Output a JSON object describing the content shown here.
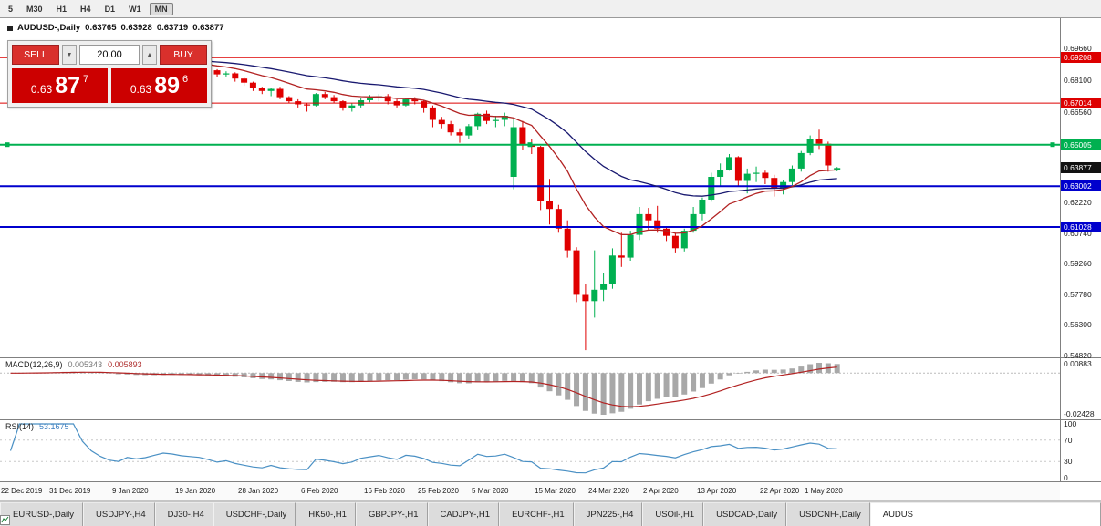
{
  "toolbar": {
    "timeframes": [
      {
        "label": "5",
        "active": false
      },
      {
        "label": "M30",
        "active": false
      },
      {
        "label": "H1",
        "active": false
      },
      {
        "label": "H4",
        "active": false
      },
      {
        "label": "D1",
        "active": false
      },
      {
        "label": "W1",
        "active": false
      },
      {
        "label": "MN",
        "active": true
      }
    ]
  },
  "chart": {
    "symbol_line": {
      "symbol": "AUDUSD-,Daily",
      "open": "0.63765",
      "high": "0.63928",
      "low": "0.63719",
      "close": "0.63877"
    }
  },
  "trade_panel": {
    "sell_label": "SELL",
    "buy_label": "BUY",
    "volume": "20.00",
    "sell_price": {
      "base": "0.63",
      "pips": "87",
      "sup": "7"
    },
    "buy_price": {
      "base": "0.63",
      "pips": "89",
      "sup": "6"
    }
  },
  "indicator_headers": {
    "macd": {
      "name": "MACD(12,26,9)",
      "value1": "0.005343",
      "value2": "0.005893"
    },
    "rsi": {
      "name": "RSI(14)",
      "value": "53.1675"
    }
  },
  "chart_data": {
    "type": "candlestick",
    "title": "AUDUSD-,Daily",
    "price_range": {
      "max": 0.6966,
      "min": 0.5482
    },
    "y_axis_labels": [
      "0.69660",
      "0.68100",
      "0.66560",
      "0.62220",
      "0.60740",
      "0.59260",
      "0.57780",
      "0.56300",
      "0.54820"
    ],
    "x_axis_labels": [
      {
        "bar": 0,
        "text": "22 Dec 2019"
      },
      {
        "bar": 7,
        "text": "31 Dec 2019"
      },
      {
        "bar": 14,
        "text": "9 Jan 2020"
      },
      {
        "bar": 21,
        "text": "19 Jan 2020"
      },
      {
        "bar": 28,
        "text": "28 Jan 2020"
      },
      {
        "bar": 35,
        "text": "6 Feb 2020"
      },
      {
        "bar": 42,
        "text": "16 Feb 2020"
      },
      {
        "bar": 48,
        "text": "25 Feb 2020"
      },
      {
        "bar": 54,
        "text": "5 Mar 2020"
      },
      {
        "bar": 61,
        "text": "15 Mar 2020"
      },
      {
        "bar": 67,
        "text": "24 Mar 2020"
      },
      {
        "bar": 73,
        "text": "2 Apr 2020"
      },
      {
        "bar": 79,
        "text": "13 Apr 2020"
      },
      {
        "bar": 86,
        "text": "22 Apr 2020"
      },
      {
        "bar": 91,
        "text": "1 May 2020"
      }
    ],
    "candles": [
      [
        0.691,
        0.6925,
        0.69,
        0.692
      ],
      [
        0.692,
        0.6935,
        0.691,
        0.6928
      ],
      [
        0.6928,
        0.694,
        0.6918,
        0.6935
      ],
      [
        0.6935,
        0.6948,
        0.6925,
        0.694
      ],
      [
        0.694,
        0.695,
        0.693,
        0.6945
      ],
      [
        0.6945,
        0.6955,
        0.6935,
        0.695
      ],
      [
        0.695,
        0.696,
        0.694,
        0.6955
      ],
      [
        0.6955,
        0.6962,
        0.6945,
        0.6958
      ],
      [
        0.6958,
        0.696,
        0.693,
        0.694
      ],
      [
        0.694,
        0.6945,
        0.6905,
        0.692
      ],
      [
        0.692,
        0.6925,
        0.6885,
        0.69
      ],
      [
        0.69,
        0.6905,
        0.6865,
        0.688
      ],
      [
        0.688,
        0.689,
        0.6855,
        0.687
      ],
      [
        0.687,
        0.6895,
        0.686,
        0.6885
      ],
      [
        0.6885,
        0.69,
        0.6855,
        0.6875
      ],
      [
        0.6875,
        0.6895,
        0.6865,
        0.688
      ],
      [
        0.688,
        0.69,
        0.687,
        0.689
      ],
      [
        0.689,
        0.691,
        0.688,
        0.69
      ],
      [
        0.69,
        0.6905,
        0.688,
        0.6895
      ],
      [
        0.6895,
        0.69,
        0.687,
        0.6885
      ],
      [
        0.6885,
        0.689,
        0.6865,
        0.688
      ],
      [
        0.688,
        0.6885,
        0.686,
        0.6875
      ],
      [
        0.6875,
        0.688,
        0.6845,
        0.686
      ],
      [
        0.686,
        0.6865,
        0.6825,
        0.684
      ],
      [
        0.684,
        0.6855,
        0.683,
        0.6845
      ],
      [
        0.6845,
        0.685,
        0.6805,
        0.682
      ],
      [
        0.682,
        0.6825,
        0.6785,
        0.68
      ],
      [
        0.68,
        0.6805,
        0.676,
        0.6775
      ],
      [
        0.6775,
        0.678,
        0.6745,
        0.676
      ],
      [
        0.676,
        0.6775,
        0.6735,
        0.677
      ],
      [
        0.677,
        0.678,
        0.672,
        0.673
      ],
      [
        0.673,
        0.6735,
        0.67,
        0.671
      ],
      [
        0.671,
        0.672,
        0.668,
        0.6695
      ],
      [
        0.6695,
        0.67,
        0.666,
        0.669
      ],
      [
        0.669,
        0.675,
        0.6685,
        0.6745
      ],
      [
        0.6745,
        0.6755,
        0.672,
        0.673
      ],
      [
        0.673,
        0.674,
        0.67,
        0.671
      ],
      [
        0.671,
        0.6715,
        0.6665,
        0.668
      ],
      [
        0.668,
        0.67,
        0.666,
        0.669
      ],
      [
        0.669,
        0.6725,
        0.668,
        0.6715
      ],
      [
        0.6715,
        0.674,
        0.6705,
        0.6725
      ],
      [
        0.6725,
        0.6745,
        0.671,
        0.6735
      ],
      [
        0.6735,
        0.6745,
        0.6695,
        0.671
      ],
      [
        0.671,
        0.672,
        0.668,
        0.669
      ],
      [
        0.669,
        0.6725,
        0.6685,
        0.672
      ],
      [
        0.672,
        0.673,
        0.6695,
        0.671
      ],
      [
        0.671,
        0.6715,
        0.6655,
        0.668
      ],
      [
        0.668,
        0.669,
        0.6585,
        0.662
      ],
      [
        0.662,
        0.6635,
        0.658,
        0.66
      ],
      [
        0.66,
        0.6615,
        0.6545,
        0.656
      ],
      [
        0.656,
        0.658,
        0.651,
        0.6545
      ],
      [
        0.6545,
        0.66,
        0.653,
        0.659
      ],
      [
        0.659,
        0.6655,
        0.657,
        0.665
      ],
      [
        0.665,
        0.6665,
        0.66,
        0.6615
      ],
      [
        0.6615,
        0.664,
        0.6585,
        0.662
      ],
      [
        0.662,
        0.6655,
        0.659,
        0.664
      ],
      [
        0.6345,
        0.663,
        0.6285,
        0.6585
      ],
      [
        0.6585,
        0.6615,
        0.6475,
        0.65
      ],
      [
        0.65,
        0.653,
        0.6455,
        0.649
      ],
      [
        0.649,
        0.6495,
        0.6185,
        0.623
      ],
      [
        0.623,
        0.6335,
        0.6115,
        0.619
      ],
      [
        0.619,
        0.621,
        0.6075,
        0.6095
      ],
      [
        0.6095,
        0.6135,
        0.5955,
        0.599
      ],
      [
        0.599,
        0.6005,
        0.574,
        0.5775
      ],
      [
        0.5775,
        0.583,
        0.5508,
        0.5745
      ],
      [
        0.5745,
        0.599,
        0.5665,
        0.58
      ],
      [
        0.58,
        0.588,
        0.5745,
        0.583
      ],
      [
        0.583,
        0.6,
        0.5805,
        0.5965
      ],
      [
        0.5965,
        0.6075,
        0.591,
        0.5955
      ],
      [
        0.5955,
        0.6085,
        0.594,
        0.6065
      ],
      [
        0.6065,
        0.62,
        0.604,
        0.6165
      ],
      [
        0.6165,
        0.6195,
        0.609,
        0.6135
      ],
      [
        0.6135,
        0.6205,
        0.6075,
        0.6095
      ],
      [
        0.6095,
        0.6105,
        0.6035,
        0.606
      ],
      [
        0.606,
        0.6075,
        0.598,
        0.6
      ],
      [
        0.6,
        0.6095,
        0.5985,
        0.6085
      ],
      [
        0.6085,
        0.62,
        0.6075,
        0.6165
      ],
      [
        0.6165,
        0.6245,
        0.6135,
        0.6235
      ],
      [
        0.6235,
        0.6365,
        0.6225,
        0.6345
      ],
      [
        0.6345,
        0.641,
        0.63,
        0.638
      ],
      [
        0.638,
        0.6455,
        0.6375,
        0.644
      ],
      [
        0.644,
        0.6445,
        0.63,
        0.6325
      ],
      [
        0.6325,
        0.6385,
        0.6265,
        0.636
      ],
      [
        0.636,
        0.6395,
        0.632,
        0.6365
      ],
      [
        0.6365,
        0.6375,
        0.631,
        0.634
      ],
      [
        0.634,
        0.6355,
        0.625,
        0.629
      ],
      [
        0.629,
        0.633,
        0.626,
        0.632
      ],
      [
        0.632,
        0.64,
        0.6305,
        0.6385
      ],
      [
        0.6385,
        0.647,
        0.637,
        0.646
      ],
      [
        0.646,
        0.6545,
        0.645,
        0.653
      ],
      [
        0.653,
        0.6573,
        0.648,
        0.6505
      ],
      [
        0.6505,
        0.6515,
        0.637,
        0.64
      ],
      [
        0.63765,
        0.63928,
        0.63719,
        0.63877
      ]
    ],
    "hlines": [
      {
        "price": 0.69208,
        "label": "0.69208",
        "color": "#dd0000",
        "width": 1,
        "selected": false
      },
      {
        "price": 0.67014,
        "label": "0.67014",
        "color": "#dd0000",
        "width": 1,
        "selected": false
      },
      {
        "price": 0.65005,
        "label": "0.65005",
        "color": "#00b050",
        "width": 2,
        "selected": true
      },
      {
        "price": 0.63002,
        "label": "0.63002",
        "color": "#0000cd",
        "width": 2,
        "selected": false
      },
      {
        "price": 0.61028,
        "label": "0.61028",
        "color": "#0000cd",
        "width": 2,
        "selected": false
      }
    ],
    "current_price": {
      "value": 0.63877,
      "label": "0.63877",
      "color": "#111111"
    },
    "colors": {
      "up": "#00b050",
      "down": "#e00000",
      "ma_fast": "#b22222",
      "ma_slow": "#191970",
      "macd_hist": "#a8a8a8",
      "macd_signal": "#b22222",
      "rsi_line": "#4a90c4"
    },
    "macd_axis_labels": [
      "0.00883",
      "-0.02428"
    ],
    "rsi_axis_labels": [
      "100",
      "70",
      "30",
      "0"
    ],
    "rsi_levels": [
      70,
      30
    ]
  },
  "tabs": [
    {
      "label": "EURUSD-,Daily",
      "active": false
    },
    {
      "label": "USDJPY-,H4",
      "active": false
    },
    {
      "label": "DJ30-,H4",
      "active": false
    },
    {
      "label": "USDCHF-,Daily",
      "active": false
    },
    {
      "label": "HK50-,H1",
      "active": false
    },
    {
      "label": "GBPJPY-,H1",
      "active": false
    },
    {
      "label": "CADJPY-,H1",
      "active": false
    },
    {
      "label": "EURCHF-,H1",
      "active": false
    },
    {
      "label": "JPN225-,H4",
      "active": false
    },
    {
      "label": "USOil-,H1",
      "active": false
    },
    {
      "label": "USDCAD-,Daily",
      "active": false
    },
    {
      "label": "USDCNH-,Daily",
      "active": false
    },
    {
      "label": "AUDUS",
      "active": true
    }
  ]
}
